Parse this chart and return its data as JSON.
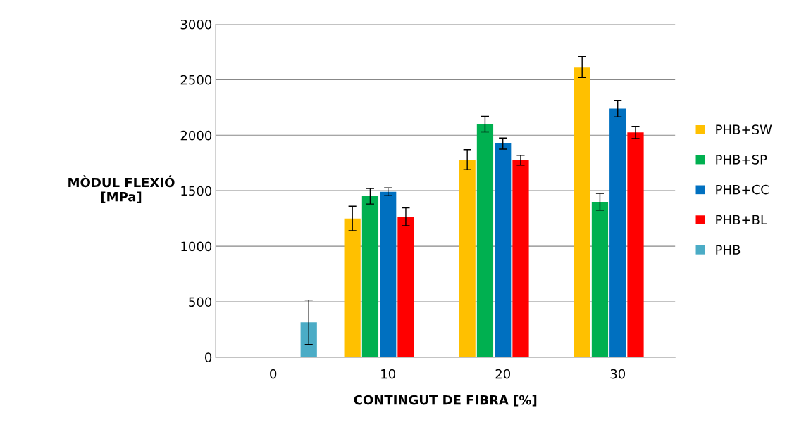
{
  "chart_data": {
    "type": "bar",
    "xlabel": "CONTINGUT DE FIBRA [%]",
    "ylabel": "MÒDUL FLEXIÓ\n[MPa]",
    "categories": [
      "0",
      "10",
      "20",
      "30"
    ],
    "series": [
      {
        "name": "PHB+SW",
        "color": "#ffc000",
        "values": [
          null,
          1250,
          1780,
          2615
        ],
        "errors": [
          null,
          110,
          90,
          95
        ]
      },
      {
        "name": "PHB+SP",
        "color": "#00b050",
        "values": [
          null,
          1450,
          2100,
          1400
        ],
        "errors": [
          null,
          70,
          70,
          75
        ]
      },
      {
        "name": "PHB+CC",
        "color": "#0070c0",
        "values": [
          null,
          1490,
          1925,
          2240
        ],
        "errors": [
          null,
          35,
          50,
          75
        ]
      },
      {
        "name": "PHB+BL",
        "color": "#ff0000",
        "values": [
          null,
          1265,
          1775,
          2025
        ],
        "errors": [
          null,
          80,
          45,
          55
        ]
      },
      {
        "name": "PHB",
        "color": "#4bacc6",
        "values": [
          315,
          null,
          null,
          null
        ],
        "errors": [
          200,
          null,
          null,
          null
        ]
      }
    ],
    "ylim": [
      0,
      3000
    ],
    "yticks": [
      0,
      500,
      1000,
      1500,
      2000,
      2500,
      3000
    ],
    "grid": "y",
    "legend": "right"
  }
}
